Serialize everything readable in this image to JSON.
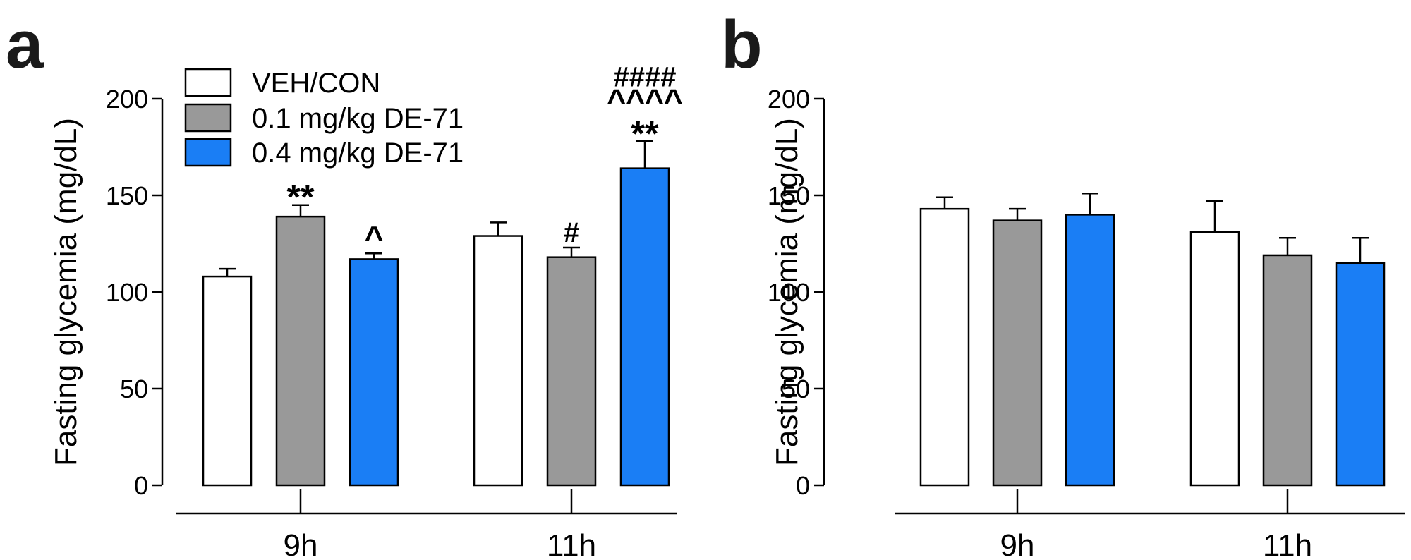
{
  "panel_letters": [
    "a",
    "b"
  ],
  "colors": {
    "veh_con": "#ffffff",
    "dose_low": "#999999",
    "dose_high": "#1a7ef5",
    "stroke": "#000000"
  },
  "chart_data": [
    {
      "type": "bar",
      "panel": "a",
      "ylabel": "Fasting glycemia (mg/dL)",
      "ylim": [
        0,
        200
      ],
      "yticks": [
        "0",
        "50",
        "100",
        "150",
        "200"
      ],
      "categories": [
        "9h",
        "11h"
      ],
      "series": [
        {
          "name": "VEH/CON",
          "values": [
            108,
            129
          ],
          "errors": [
            4,
            7
          ]
        },
        {
          "name": "0.1 mg/kg DE-71",
          "values": [
            139,
            118
          ],
          "errors": [
            6,
            5
          ]
        },
        {
          "name": "0.4 mg/kg DE-71",
          "values": [
            117,
            164
          ],
          "errors": [
            3,
            14
          ]
        }
      ],
      "annotations": [
        {
          "series": 1,
          "category": 0,
          "lines": [
            "**"
          ]
        },
        {
          "series": 2,
          "category": 0,
          "lines": [
            "^"
          ]
        },
        {
          "series": 1,
          "category": 1,
          "lines": [
            "#"
          ]
        },
        {
          "series": 2,
          "category": 1,
          "lines": [
            "####",
            "^^^^",
            "**"
          ]
        }
      ],
      "legend": {
        "placement": "top-left",
        "entries": [
          "VEH/CON",
          "0.1 mg/kg DE-71",
          "0.4 mg/kg DE-71"
        ]
      }
    },
    {
      "type": "bar",
      "panel": "b",
      "ylabel": "Fasting glycemia (mg/dL)",
      "ylim": [
        0,
        200
      ],
      "yticks": [
        "0",
        "50",
        "100",
        "150",
        "200"
      ],
      "categories": [
        "9h",
        "11h"
      ],
      "series": [
        {
          "name": "VEH/CON",
          "values": [
            143,
            131
          ],
          "errors": [
            6,
            16
          ]
        },
        {
          "name": "0.1 mg/kg DE-71",
          "values": [
            137,
            119
          ],
          "errors": [
            6,
            9
          ]
        },
        {
          "name": "0.4 mg/kg DE-71",
          "values": [
            140,
            115
          ],
          "errors": [
            11,
            13
          ]
        }
      ],
      "annotations": []
    }
  ]
}
